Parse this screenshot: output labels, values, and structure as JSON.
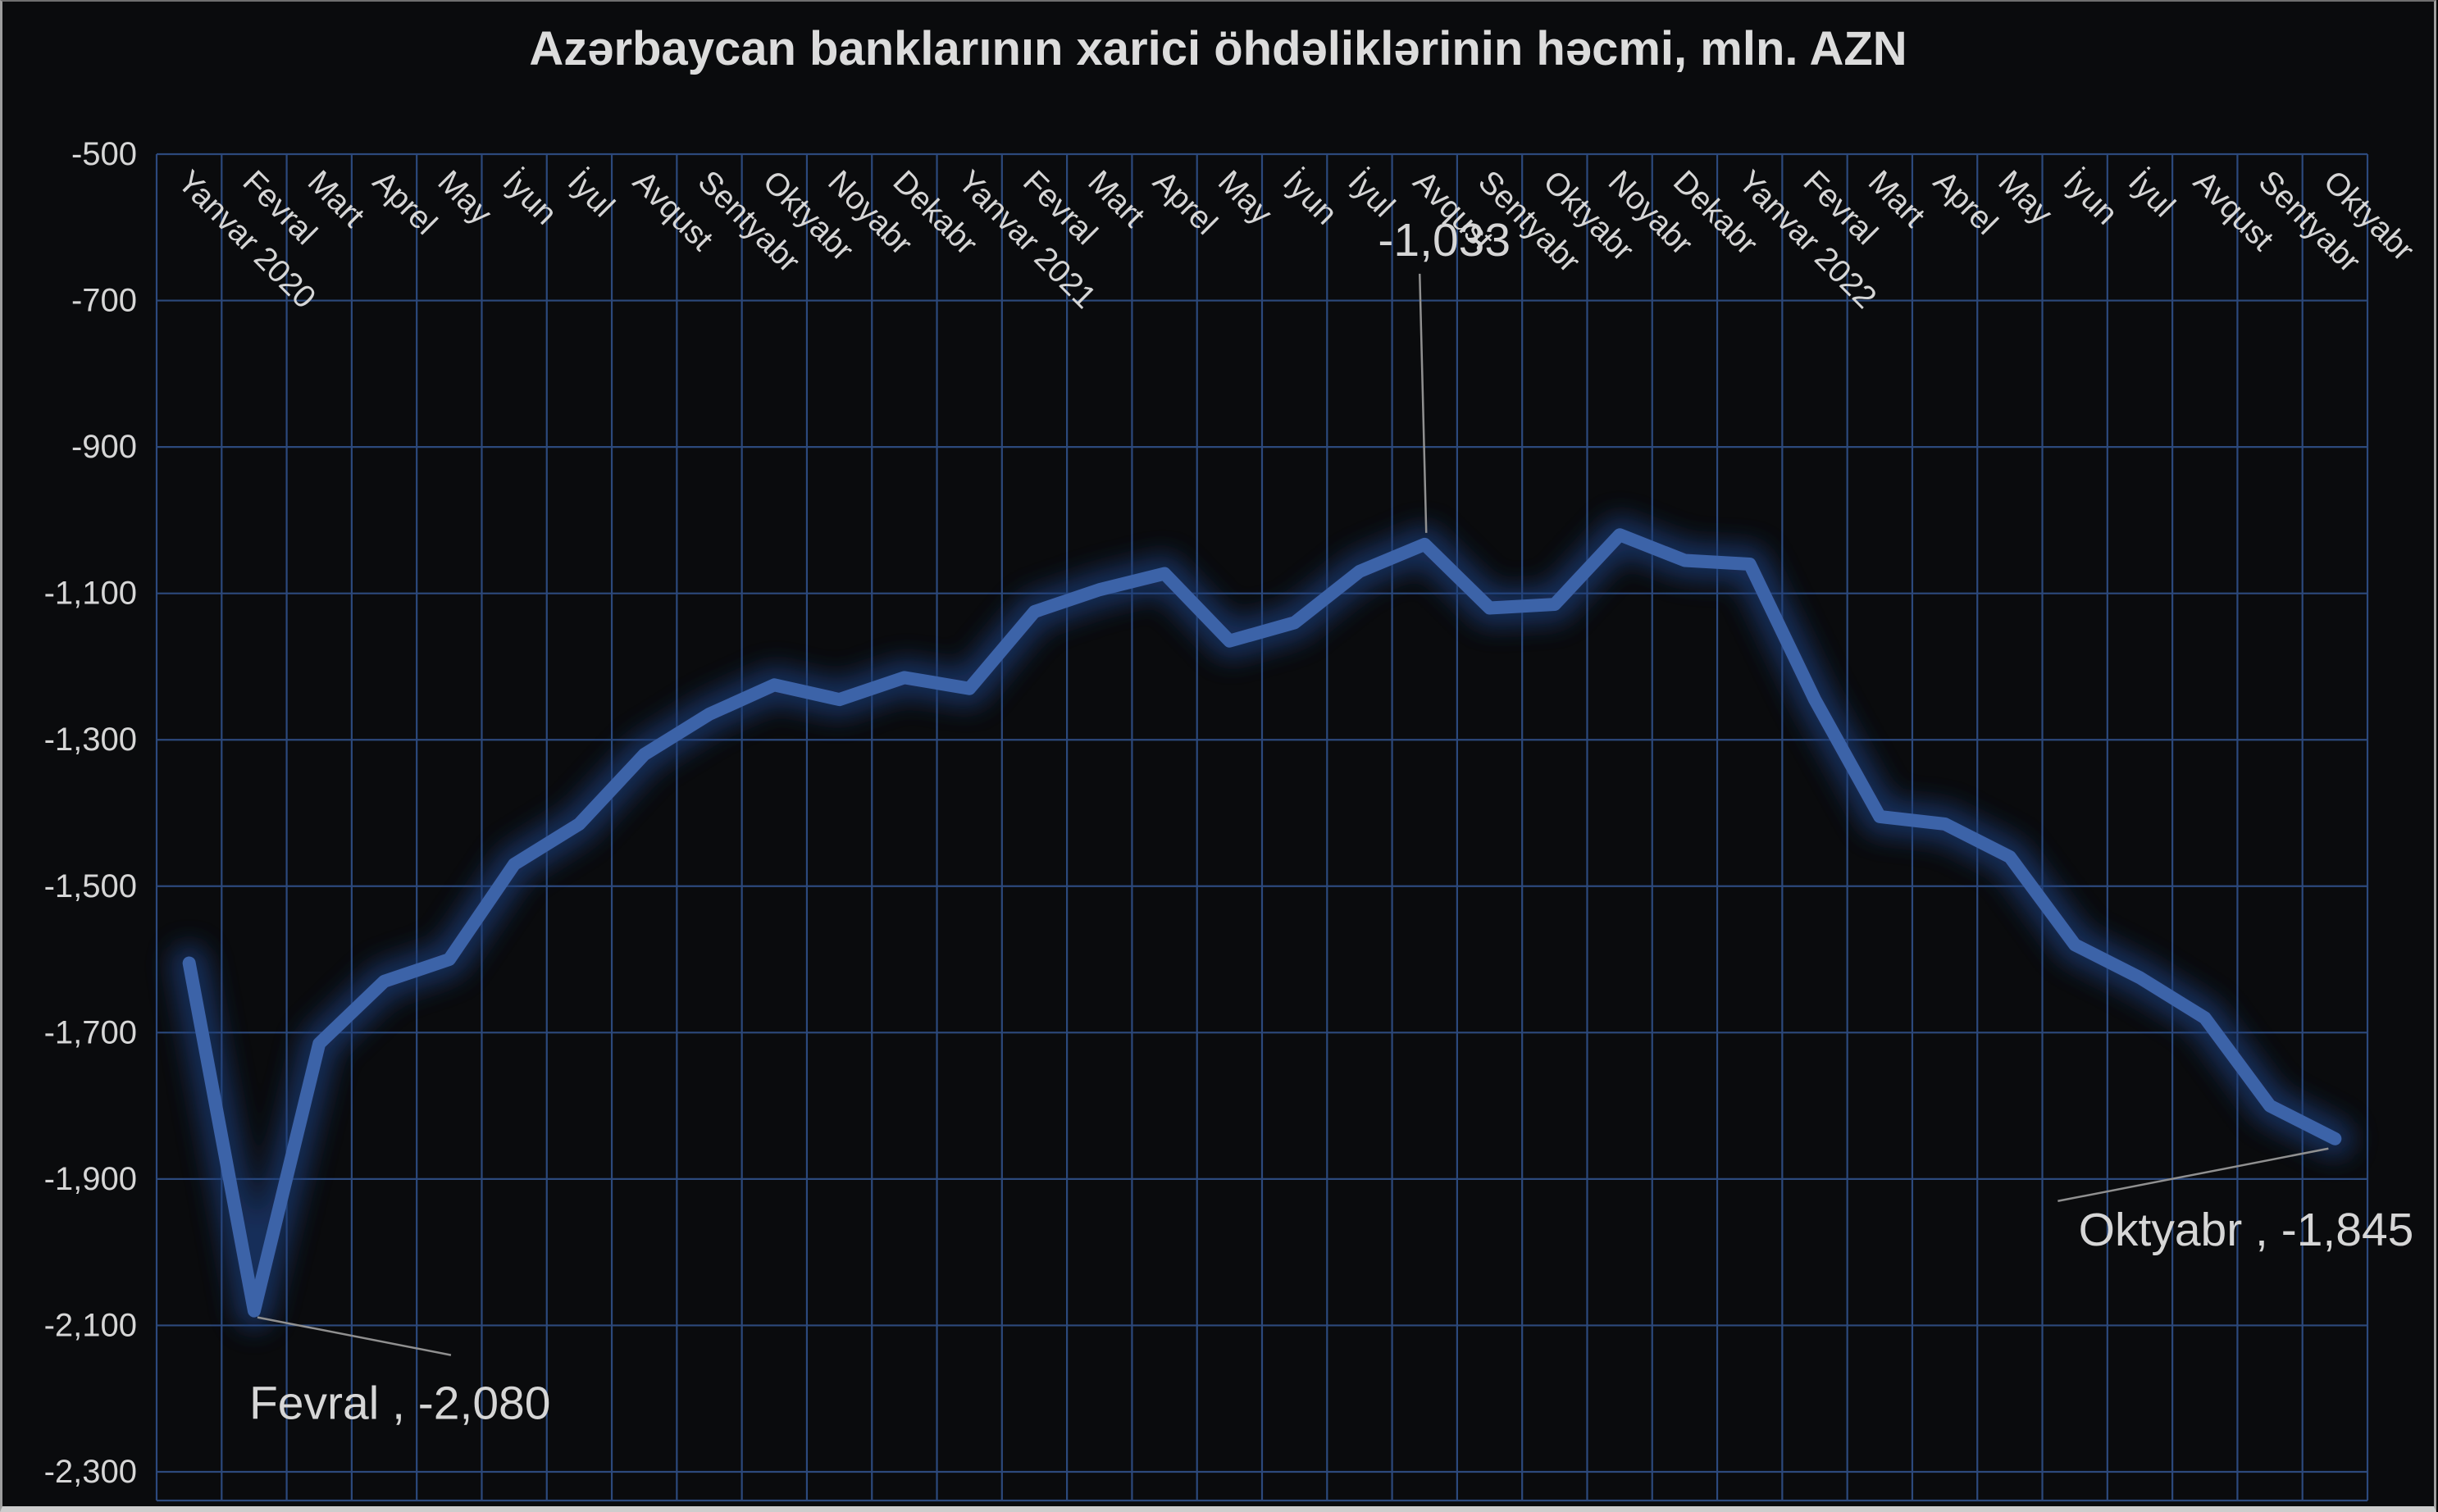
{
  "title": "Azərbaycan banklarının xarici öhdəliklərinin həcmi, mln. AZN",
  "colors": {
    "background": "#0a0b0d",
    "gridline": "#2c497c",
    "series_line": "#3c63a8",
    "series_glow": "#1c3e7a",
    "text": "#d6d6d6",
    "leader_line": "#909090"
  },
  "chart_data": {
    "type": "line",
    "title": "Azərbaycan banklarının xarici öhdəliklərinin həcmi, mln. AZN",
    "categories": [
      "Yanvar 2020",
      "Fevral",
      "Mart",
      "Aprel",
      "May",
      "İyun",
      "İyul",
      "Avqust",
      "Sentyabr",
      "Oktyabr",
      "Noyabr",
      "Dekabr",
      "Yanvar 2021",
      "Fevral",
      "Mart",
      "Aprel",
      "May",
      "İyun",
      "İyul",
      "Avqust",
      "Sentyabr",
      "Oktyabr",
      "Noyabr",
      "Dekabr",
      "Yanvar 2022",
      "Fevral",
      "Mart",
      "Aprel",
      "May",
      "İyun",
      "İyul",
      "Avqust",
      "Sentyabr",
      "Oktyabr"
    ],
    "values": [
      -1605,
      -2080,
      -1715,
      -1630,
      -1600,
      -1470,
      -1415,
      -1320,
      -1265,
      -1225,
      -1245,
      -1215,
      -1230,
      -1125,
      -1095,
      -1073,
      -1165,
      -1140,
      -1070,
      -1033,
      -1120,
      -1115,
      -1020,
      -1055,
      -1060,
      -1245,
      -1405,
      -1415,
      -1460,
      -1580,
      -1625,
      -1680,
      -1800,
      -1845
    ],
    "ylim": [
      -2300,
      -500
    ],
    "ytick_step": 200,
    "ytick_labels": [
      "-500",
      "-700",
      "-900",
      "-1,100",
      "-1,300",
      "-1,500",
      "-1,700",
      "-1,900",
      "-2,100",
      "-2,300"
    ],
    "grid": "both",
    "legend": "none",
    "annotations": [
      {
        "id": "dip",
        "index": 1,
        "label": "Fevral , -2,080"
      },
      {
        "id": "peak",
        "index": 19,
        "label": "-1,033"
      },
      {
        "id": "end",
        "index": 33,
        "label": "Oktyabr , -1,845"
      }
    ]
  }
}
